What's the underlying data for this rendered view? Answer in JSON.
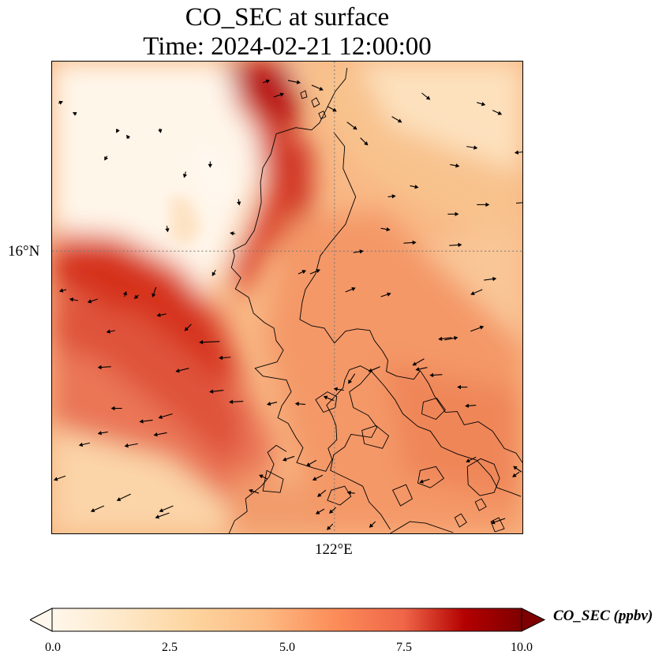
{
  "title": {
    "line1": "CO_SEC at surface",
    "line2": "Time: 2024-02-21 12:00:00"
  },
  "map": {
    "region": "Northern Philippines (Luzon)",
    "gridlines": {
      "style": "dotted",
      "color": "#777777",
      "latitude_label": "16°N",
      "longitude_label": "122°E"
    },
    "field_colors": {
      "very_low": "#fff4e4",
      "low": "#fdd9ab",
      "mid": "#f6a06d",
      "high": "#e35f43",
      "very_high": "#c51b0f",
      "extreme": "#8c0008"
    },
    "features": [
      "filled-concentration-field",
      "coastlines",
      "wind-vectors"
    ]
  },
  "colorbar": {
    "label": "CO_SEC (ppbv)",
    "ticks": [
      "0.0",
      "2.5",
      "5.0",
      "7.5",
      "10.0"
    ],
    "colormap": "OrRd",
    "extend": "both"
  }
}
